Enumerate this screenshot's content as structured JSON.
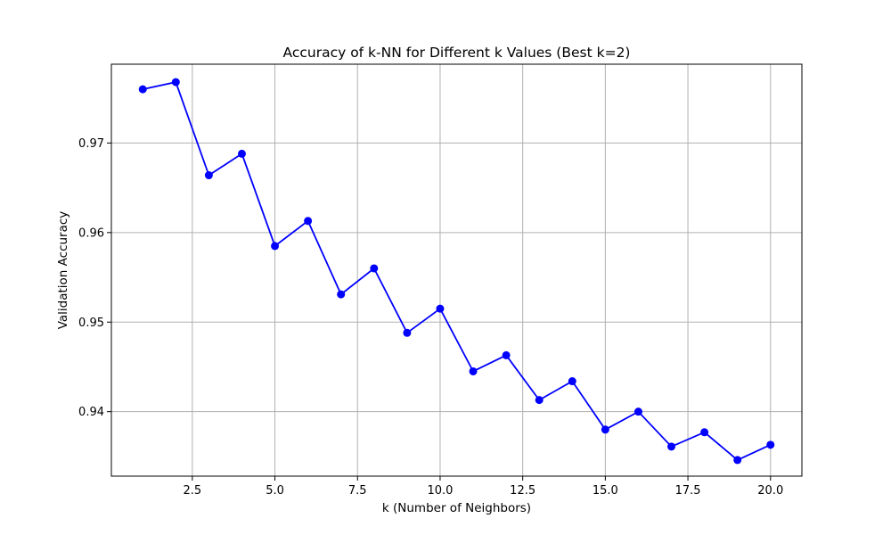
{
  "colors": {
    "line": "#0000ff",
    "marker": "#0000ff",
    "grid": "#b0b0b0",
    "axes": "#000000",
    "background": "#ffffff"
  },
  "chart_data": {
    "type": "line",
    "title": "Accuracy of k-NN for Different k Values (Best k=2)",
    "xlabel": "k (Number of Neighbors)",
    "ylabel": "Validation Accuracy",
    "xlim": [
      0.05,
      20.95
    ],
    "ylim": [
      0.9328,
      0.9788
    ],
    "xticks": [
      2.5,
      5.0,
      7.5,
      10.0,
      12.5,
      15.0,
      17.5,
      20.0
    ],
    "xtick_labels": [
      "2.5",
      "5.0",
      "7.5",
      "10.0",
      "12.5",
      "15.0",
      "17.5",
      "20.0"
    ],
    "yticks": [
      0.94,
      0.95,
      0.96,
      0.97
    ],
    "ytick_labels": [
      "0.94",
      "0.95",
      "0.96",
      "0.97"
    ],
    "grid": true,
    "marker": "circle",
    "series": [
      {
        "x": [
          1,
          2,
          3,
          4,
          5,
          6,
          7,
          8,
          9,
          10,
          11,
          12,
          13,
          14,
          15,
          16,
          17,
          18,
          19,
          20
        ],
        "y": [
          0.976,
          0.9768,
          0.9664,
          0.9688,
          0.9585,
          0.9613,
          0.9531,
          0.956,
          0.9488,
          0.9515,
          0.9445,
          0.9463,
          0.9413,
          0.9434,
          0.938,
          0.94,
          0.9361,
          0.9377,
          0.9346,
          0.9363
        ]
      }
    ]
  }
}
